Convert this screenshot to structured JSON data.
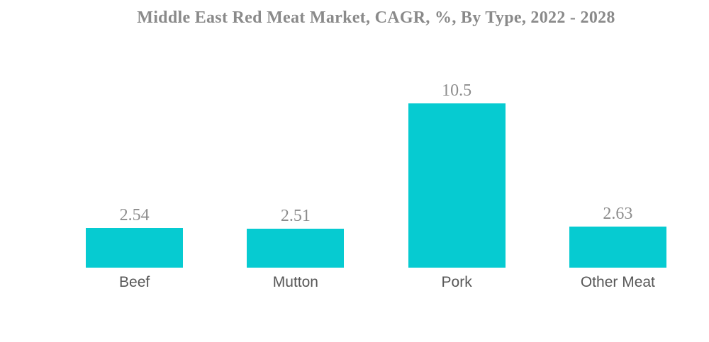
{
  "title": "Middle East Red Meat Market, CAGR, %, By Type, 2022 - 2028",
  "colors": {
    "bar": "#06cbd1",
    "title_text": "#8a8a8a",
    "value_text": "#8c8c8c",
    "category_text": "#575757",
    "background": "#ffffff"
  },
  "chart_data": {
    "type": "bar",
    "title": "Middle East Red Meat Market, CAGR, %, By Type, 2022 - 2028",
    "categories": [
      "Beef",
      "Mutton",
      "Pork",
      "Other Meat"
    ],
    "values": [
      2.54,
      2.51,
      10.5,
      2.63
    ],
    "value_labels": [
      "2.54",
      "2.51",
      "10.5",
      "2.63"
    ],
    "xlabel": "",
    "ylabel": "",
    "ylim": [
      0,
      11
    ],
    "grid": false,
    "axes_visible": false,
    "legend_position": "none",
    "data_labels": "above-bars"
  }
}
